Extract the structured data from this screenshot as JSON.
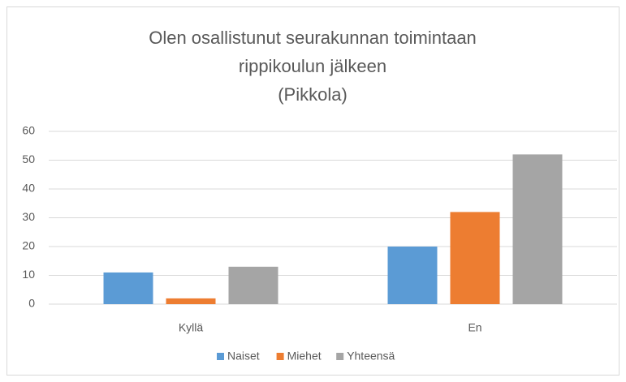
{
  "chart_data": {
    "type": "bar",
    "title": [
      "Olen osallistunut seurakunnan toimintaan",
      "rippikoulun jälkeen",
      "(Pikkola)"
    ],
    "categories": [
      "Kyllä",
      "En"
    ],
    "series": [
      {
        "name": "Naiset",
        "color": "#5b9bd5",
        "values": [
          11,
          20
        ]
      },
      {
        "name": "Miehet",
        "color": "#ed7d31",
        "values": [
          2,
          32
        ]
      },
      {
        "name": "Yhteensä",
        "color": "#a5a5a5",
        "values": [
          13,
          52
        ]
      }
    ],
    "ylim": [
      0,
      60
    ],
    "yticks": [
      0,
      10,
      20,
      30,
      40,
      50,
      60
    ],
    "grid": true,
    "legend": "bottom"
  }
}
